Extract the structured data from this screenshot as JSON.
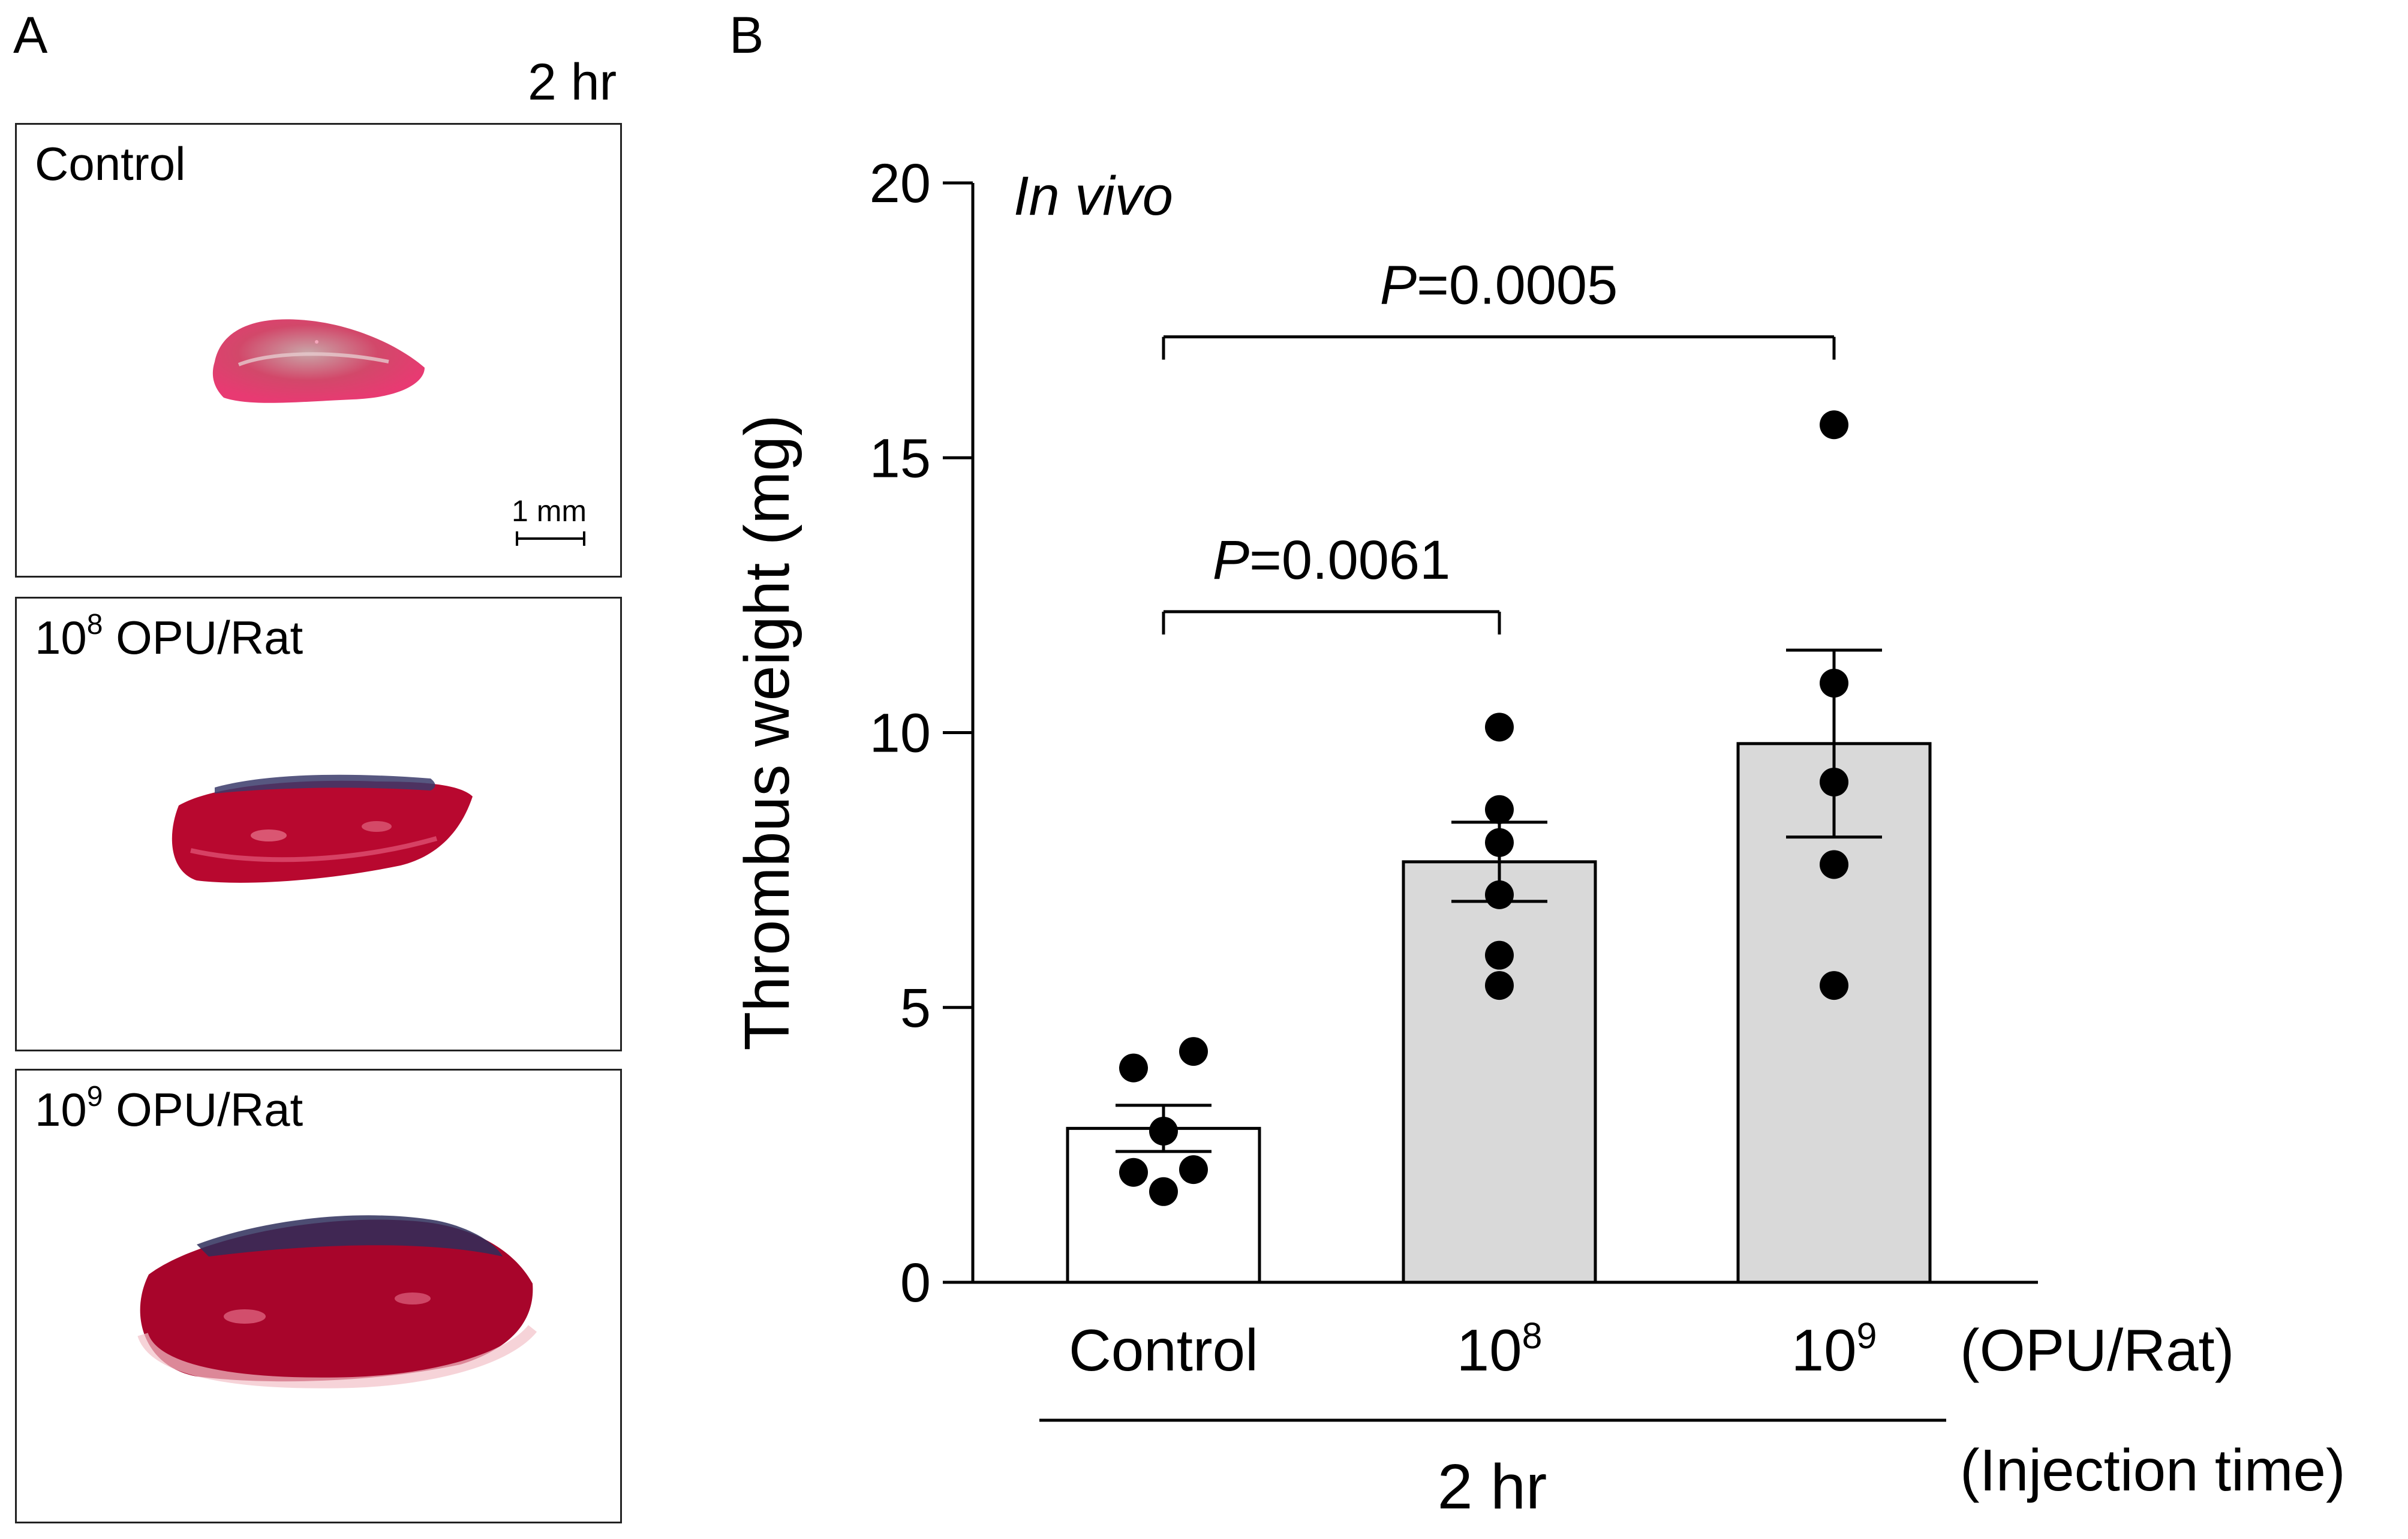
{
  "panel_a": {
    "letter": "A",
    "time_label": "2 hr",
    "panels": [
      {
        "label_base": "Control",
        "label_sup": "",
        "label_rest": ""
      },
      {
        "label_base": "10",
        "label_sup": "8",
        "label_rest": " OPU/Rat"
      },
      {
        "label_base": "10",
        "label_sup": "9",
        "label_rest": " OPU/Rat"
      }
    ],
    "scale_bar": "1 mm"
  },
  "chart_data": {
    "type": "bar",
    "panel_letter": "B",
    "annotation": "In vivo",
    "ylabel": "Thrombus weight (mg)",
    "ylim": [
      0,
      20
    ],
    "yticks": [
      0,
      5,
      10,
      15,
      20
    ],
    "categories": [
      {
        "base": "Control",
        "sup": ""
      },
      {
        "base": "10",
        "sup": "8"
      },
      {
        "base": "10",
        "sup": "9"
      }
    ],
    "category_unit": "(OPU/Rat)",
    "group_label": "2 hr",
    "group_unit": "(Injection time)",
    "bar_colors": [
      "#ffffff",
      "#d9d9d9",
      "#d9d9d9"
    ],
    "means": [
      2.8,
      7.65,
      9.8
    ],
    "sem": [
      0.42,
      0.72,
      1.7
    ],
    "points": [
      [
        {
          "x": -0.25,
          "y": 3.9
        },
        {
          "x": 0.25,
          "y": 4.2
        },
        {
          "x": 0.0,
          "y": 2.75
        },
        {
          "x": -0.25,
          "y": 2.0
        },
        {
          "x": 0.25,
          "y": 2.05
        },
        {
          "x": 0.0,
          "y": 1.65
        }
      ],
      [
        {
          "x": 0.0,
          "y": 10.1
        },
        {
          "x": 0.0,
          "y": 8.6
        },
        {
          "x": 0.0,
          "y": 8.0
        },
        {
          "x": 0.0,
          "y": 7.05
        },
        {
          "x": 0.0,
          "y": 5.95
        },
        {
          "x": 0.0,
          "y": 5.4
        }
      ],
      [
        {
          "x": 0.0,
          "y": 15.6
        },
        {
          "x": 0.0,
          "y": 10.9
        },
        {
          "x": 0.0,
          "y": 9.1
        },
        {
          "x": 0.0,
          "y": 7.6
        },
        {
          "x": 0.0,
          "y": 5.4
        }
      ]
    ],
    "comparisons": [
      {
        "from": 0,
        "to": 1,
        "y": 12.2,
        "p_letter": "P",
        "p_value": "=0.0061"
      },
      {
        "from": 0,
        "to": 2,
        "y": 17.2,
        "p_letter": "P",
        "p_value": "=0.0005"
      }
    ]
  }
}
